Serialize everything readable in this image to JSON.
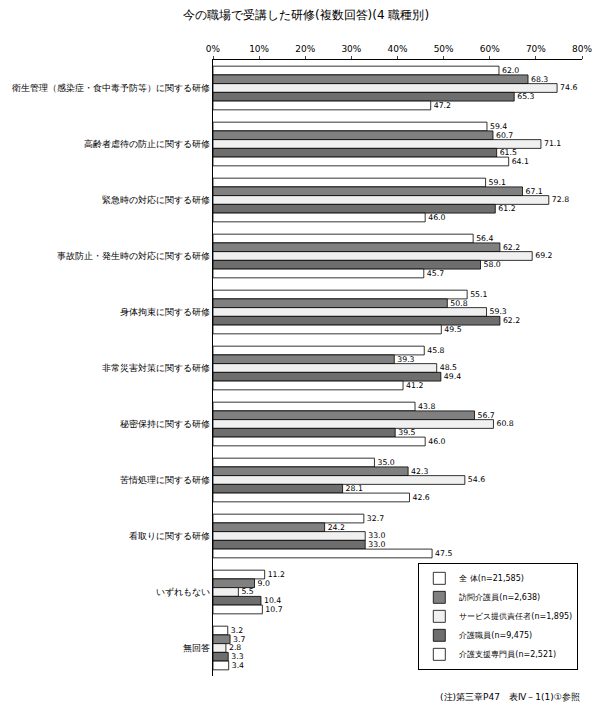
{
  "chart_data": {
    "type": "bar",
    "orientation": "horizontal",
    "title": "今の職場で受講した研修(複数回答)(4 職種別)",
    "note": "(注)第三章P47　表Ⅳ－1(1)①参照",
    "categories": [
      "衛生管理（感染症・食中毒予防等）に関する研修",
      "高齢者虐待の防止に関する研修",
      "緊急時の対応に関する研修",
      "事故防止・発生時の対応に関する研修",
      "身体拘束に関する研修",
      "非常災害対策に関する研修",
      "秘密保持に関する研修",
      "苦情処理に関する研修",
      "看取りに関する研修",
      "いずれもない",
      "無回答"
    ],
    "series": [
      {
        "name": "全 体(n=21,585)",
        "color": "#ffffff",
        "values": [
          62.0,
          59.4,
          59.1,
          56.4,
          55.1,
          45.8,
          43.8,
          35.0,
          32.7,
          11.2,
          3.2
        ],
        "value_labels": [
          "62.0",
          "59.4",
          "59.1",
          "56.4",
          "55.1",
          "45.8",
          "43.8",
          "35.0",
          "32.7",
          "11.2",
          "3.2"
        ]
      },
      {
        "name": "訪問介護員(n=2,638)",
        "color": "#808080",
        "values": [
          68.3,
          60.7,
          67.1,
          62.2,
          50.8,
          39.3,
          56.7,
          42.3,
          24.2,
          9.0,
          3.7
        ],
        "value_labels": [
          "68.3",
          "60.7",
          "67.1",
          "62.2",
          "50.8",
          "39.3",
          "56.7",
          "42.3",
          "24.2",
          "9.0",
          "3.7"
        ]
      },
      {
        "name": "サービス提供責任者(n=1,895)",
        "color": "#f0f0f0",
        "values": [
          74.6,
          71.1,
          72.8,
          69.2,
          59.3,
          48.5,
          60.8,
          54.6,
          33.0,
          5.5,
          2.8
        ],
        "value_labels": [
          "74.6",
          "71.1",
          "72.8",
          "69.2",
          "59.3",
          "48.5",
          "60.8",
          "54.6",
          "33.0",
          "5.5",
          "2.8"
        ]
      },
      {
        "name": "介護職員(n=9,475)",
        "color": "#6e6e6e",
        "values": [
          65.3,
          61.5,
          61.2,
          58.0,
          62.2,
          49.4,
          39.5,
          28.1,
          33.0,
          10.4,
          3.3
        ],
        "value_labels": [
          "65.3",
          "61.5",
          "61.2",
          "58.0",
          "62.2",
          "49.4",
          "39.5",
          "28.1",
          "33.0",
          "10.4",
          "3.3"
        ]
      },
      {
        "name": "介護支援専門員(n=2,521)",
        "color": "#ffffff",
        "values": [
          47.2,
          64.1,
          46.0,
          45.7,
          49.5,
          41.2,
          46.0,
          42.6,
          47.5,
          10.7,
          3.4
        ],
        "value_labels": [
          "47.2",
          "64.1",
          "46.0",
          "45.7",
          "49.5",
          "41.2",
          "46.0",
          "42.6",
          "47.5",
          "10.7",
          "3.4"
        ]
      }
    ],
    "xlim": [
      0,
      80
    ],
    "xticks": [
      {
        "value": 0,
        "label": "0%"
      },
      {
        "value": 10,
        "label": "10%"
      },
      {
        "value": 20,
        "label": "20%"
      },
      {
        "value": 30,
        "label": "30%"
      },
      {
        "value": 40,
        "label": "40%"
      },
      {
        "value": 50,
        "label": "50%"
      },
      {
        "value": 60,
        "label": "60%"
      },
      {
        "value": 70,
        "label": "70%"
      },
      {
        "value": 80,
        "label": "80%"
      }
    ],
    "grid": false,
    "legend": "lower right",
    "data_labels": true
  }
}
